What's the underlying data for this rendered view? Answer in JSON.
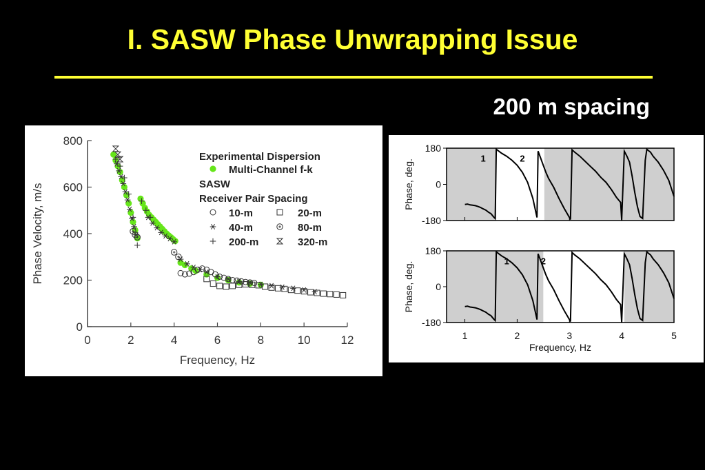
{
  "slide": {
    "title": "I. SASW Phase Unwrapping Issue",
    "subtitle": "200 m spacing",
    "title_color": "#ffff33",
    "background": "#000000"
  },
  "chart_data": [
    {
      "type": "scatter",
      "xlabel": "Frequency, Hz",
      "ylabel": "Phase Velocity, m/s",
      "xlim": [
        0,
        12
      ],
      "ylim": [
        0,
        800
      ],
      "xticks": [
        "0",
        "2",
        "4",
        "6",
        "8",
        "10",
        "12"
      ],
      "yticks": [
        "0",
        "200",
        "400",
        "600",
        "800"
      ],
      "legend": {
        "position": "top-right",
        "heading": "Experimental Dispersion",
        "group_heading": "SASW",
        "subheading": "Receiver Pair Spacing",
        "entries": [
          {
            "label": "Multi-Channel f-k",
            "marker": "filled-circle",
            "color": "#66e61a"
          },
          {
            "label": "10-m",
            "marker": "open-circle"
          },
          {
            "label": "20-m",
            "marker": "open-square"
          },
          {
            "label": "40-m",
            "marker": "asterisk"
          },
          {
            "label": "80-m",
            "marker": "circle-plus"
          },
          {
            "label": "200-m",
            "marker": "plus"
          },
          {
            "label": "320-m",
            "marker": "hourglass"
          }
        ]
      },
      "series": [
        {
          "name": "Multi-Channel f-k",
          "marker": "filled-circle",
          "color": "#66e61a",
          "x": [
            1.2,
            1.3,
            1.4,
            1.5,
            1.6,
            1.7,
            1.8,
            1.9,
            2.0,
            2.1,
            2.2,
            2.3,
            2.45,
            2.55,
            2.65,
            2.75,
            2.85,
            2.95,
            3.05,
            3.15,
            3.25,
            3.35,
            3.45,
            3.55,
            3.65,
            3.75,
            3.85,
            3.95,
            4.05,
            4.3,
            4.5,
            4.8,
            5.0,
            5.5,
            6.0,
            6.5,
            7.0,
            7.5,
            8.0
          ],
          "y": [
            740,
            715,
            690,
            665,
            630,
            600,
            565,
            530,
            490,
            450,
            415,
            380,
            550,
            530,
            510,
            495,
            480,
            470,
            460,
            450,
            440,
            430,
            420,
            410,
            400,
            392,
            384,
            376,
            368,
            275,
            265,
            250,
            240,
            225,
            210,
            200,
            190,
            185,
            180
          ]
        },
        {
          "name": "10-m",
          "marker": "open-circle",
          "x": [
            4.3,
            4.5,
            4.7,
            4.9,
            5.1,
            5.3,
            5.5,
            5.7,
            5.9,
            6.1,
            6.3,
            6.5,
            6.7,
            6.9,
            7.1,
            7.3,
            7.5,
            7.7
          ],
          "y": [
            230,
            225,
            228,
            235,
            245,
            250,
            245,
            235,
            225,
            215,
            210,
            205,
            200,
            198,
            195,
            192,
            190,
            188
          ]
        },
        {
          "name": "20-m",
          "marker": "open-square",
          "x": [
            5.5,
            5.8,
            6.1,
            6.4,
            6.7,
            7.0,
            7.3,
            7.6,
            7.9,
            8.2,
            8.5,
            8.8,
            9.1,
            9.4,
            9.7,
            10.0,
            10.3,
            10.6,
            10.9,
            11.2,
            11.5,
            11.8
          ],
          "y": [
            205,
            185,
            175,
            172,
            175,
            180,
            182,
            180,
            178,
            172,
            168,
            165,
            162,
            158,
            155,
            152,
            148,
            145,
            142,
            140,
            138,
            135
          ]
        },
        {
          "name": "40-m",
          "marker": "asterisk",
          "x": [
            1.35,
            1.45,
            1.55,
            1.65,
            1.75,
            1.85,
            1.95,
            2.05,
            2.15,
            2.25,
            2.8,
            3.0,
            3.2,
            3.4,
            3.6,
            3.8,
            4.0,
            4.3,
            4.6,
            4.9,
            5.2,
            5.5,
            6.0,
            6.5,
            7.0,
            7.5,
            8.0,
            8.5,
            9.0,
            9.5,
            10.0,
            10.5
          ],
          "y": [
            700,
            670,
            645,
            615,
            580,
            545,
            505,
            465,
            430,
            395,
            470,
            445,
            425,
            405,
            390,
            378,
            365,
            290,
            270,
            255,
            245,
            235,
            215,
            205,
            195,
            190,
            182,
            176,
            170,
            165,
            158,
            150
          ]
        },
        {
          "name": "80-m",
          "marker": "circle-plus",
          "x": [
            2.1,
            2.2,
            2.3,
            4.0,
            4.2
          ],
          "y": [
            410,
            395,
            385,
            320,
            300
          ]
        },
        {
          "name": "200-m",
          "marker": "plus",
          "x": [
            1.3,
            1.5,
            1.7,
            1.9,
            2.1,
            2.3,
            2.5,
            2.7,
            2.9
          ],
          "y": [
            720,
            690,
            640,
            570,
            470,
            350,
            540,
            500,
            470
          ]
        },
        {
          "name": "320-m",
          "marker": "hourglass",
          "x": [
            1.3,
            1.4,
            1.5
          ],
          "y": [
            765,
            740,
            720
          ]
        }
      ]
    },
    {
      "type": "line",
      "xlabel": "",
      "ylabel": "Phase, deg.",
      "xlim": [
        0.65,
        5.0
      ],
      "ylim": [
        -180,
        180
      ],
      "yticks": [
        "180",
        "0",
        "-180"
      ],
      "grid": false,
      "shaded_ranges": [
        [
          0.65,
          1.6
        ],
        [
          2.52,
          5.0
        ]
      ],
      "annotations": [
        {
          "text": "1",
          "x": 1.35,
          "y": 130
        },
        {
          "text": "2",
          "x": 2.1,
          "y": 130
        }
      ],
      "series": [
        {
          "x": [
            1.0,
            1.05,
            1.1,
            1.15,
            1.2,
            1.25,
            1.3,
            1.35,
            1.4,
            1.45,
            1.5,
            1.55,
            1.58,
            1.6,
            1.65,
            1.7,
            1.8,
            1.9,
            2.0,
            2.1,
            2.2,
            2.3,
            2.38,
            2.4,
            2.45,
            2.5,
            2.55,
            2.6,
            2.7,
            2.8,
            2.9,
            3.0,
            3.02,
            3.05,
            3.1,
            3.2,
            3.3,
            3.4,
            3.5,
            3.6,
            3.7,
            3.8,
            3.9,
            3.98,
            4.0,
            4.05,
            4.1,
            4.15,
            4.2,
            4.25,
            4.3,
            4.35,
            4.4,
            4.45,
            4.48,
            4.5,
            4.55,
            4.6,
            4.7,
            4.8,
            4.9,
            5.0
          ],
          "y": [
            -100,
            -98,
            -102,
            -104,
            -106,
            -110,
            -115,
            -122,
            -128,
            -138,
            -146,
            -162,
            -170,
            175,
            165,
            155,
            140,
            120,
            95,
            60,
            10,
            -70,
            -165,
            165,
            130,
            95,
            60,
            30,
            -15,
            -70,
            -120,
            -165,
            -175,
            172,
            160,
            140,
            115,
            90,
            65,
            35,
            10,
            -25,
            -65,
            -90,
            -178,
            165,
            140,
            110,
            40,
            -40,
            -110,
            -160,
            -170,
            120,
            175,
            170,
            160,
            140,
            110,
            70,
            20,
            -60
          ]
        }
      ]
    },
    {
      "type": "line",
      "xlabel": "Frequency, Hz",
      "ylabel": "Phase, deg.",
      "xlim": [
        0.65,
        5.0
      ],
      "ylim": [
        -180,
        180
      ],
      "xticks": [
        "1",
        "2",
        "3",
        "4",
        "5"
      ],
      "yticks": [
        "180",
        "0",
        "-180"
      ],
      "grid": false,
      "shaded_ranges": [
        [
          0.65,
          2.5
        ],
        [
          4.05,
          5.0
        ]
      ],
      "annotations": [
        {
          "text": "1",
          "x": 1.8,
          "y": 130
        },
        {
          "text": "2",
          "x": 2.5,
          "y": 130
        }
      ],
      "series": [
        {
          "x": [
            1.0,
            1.05,
            1.1,
            1.15,
            1.2,
            1.25,
            1.3,
            1.35,
            1.4,
            1.45,
            1.5,
            1.55,
            1.58,
            1.6,
            1.65,
            1.7,
            1.8,
            1.9,
            2.0,
            2.1,
            2.2,
            2.3,
            2.38,
            2.4,
            2.45,
            2.5,
            2.55,
            2.6,
            2.7,
            2.8,
            2.9,
            3.0,
            3.02,
            3.05,
            3.1,
            3.2,
            3.3,
            3.4,
            3.5,
            3.6,
            3.7,
            3.8,
            3.9,
            3.98,
            4.0,
            4.05,
            4.1,
            4.15,
            4.2,
            4.25,
            4.3,
            4.35,
            4.4,
            4.45,
            4.48,
            4.5,
            4.55,
            4.6,
            4.7,
            4.8,
            4.9,
            5.0
          ],
          "y": [
            -100,
            -98,
            -102,
            -104,
            -106,
            -110,
            -115,
            -122,
            -128,
            -138,
            -146,
            -162,
            -170,
            175,
            165,
            155,
            140,
            120,
            95,
            60,
            10,
            -70,
            -165,
            165,
            130,
            95,
            60,
            30,
            -15,
            -70,
            -120,
            -165,
            -175,
            172,
            160,
            140,
            115,
            90,
            65,
            35,
            10,
            -25,
            -65,
            -90,
            -178,
            165,
            140,
            110,
            40,
            -40,
            -110,
            -160,
            -170,
            120,
            175,
            170,
            160,
            140,
            110,
            70,
            20,
            -60
          ]
        }
      ]
    }
  ]
}
